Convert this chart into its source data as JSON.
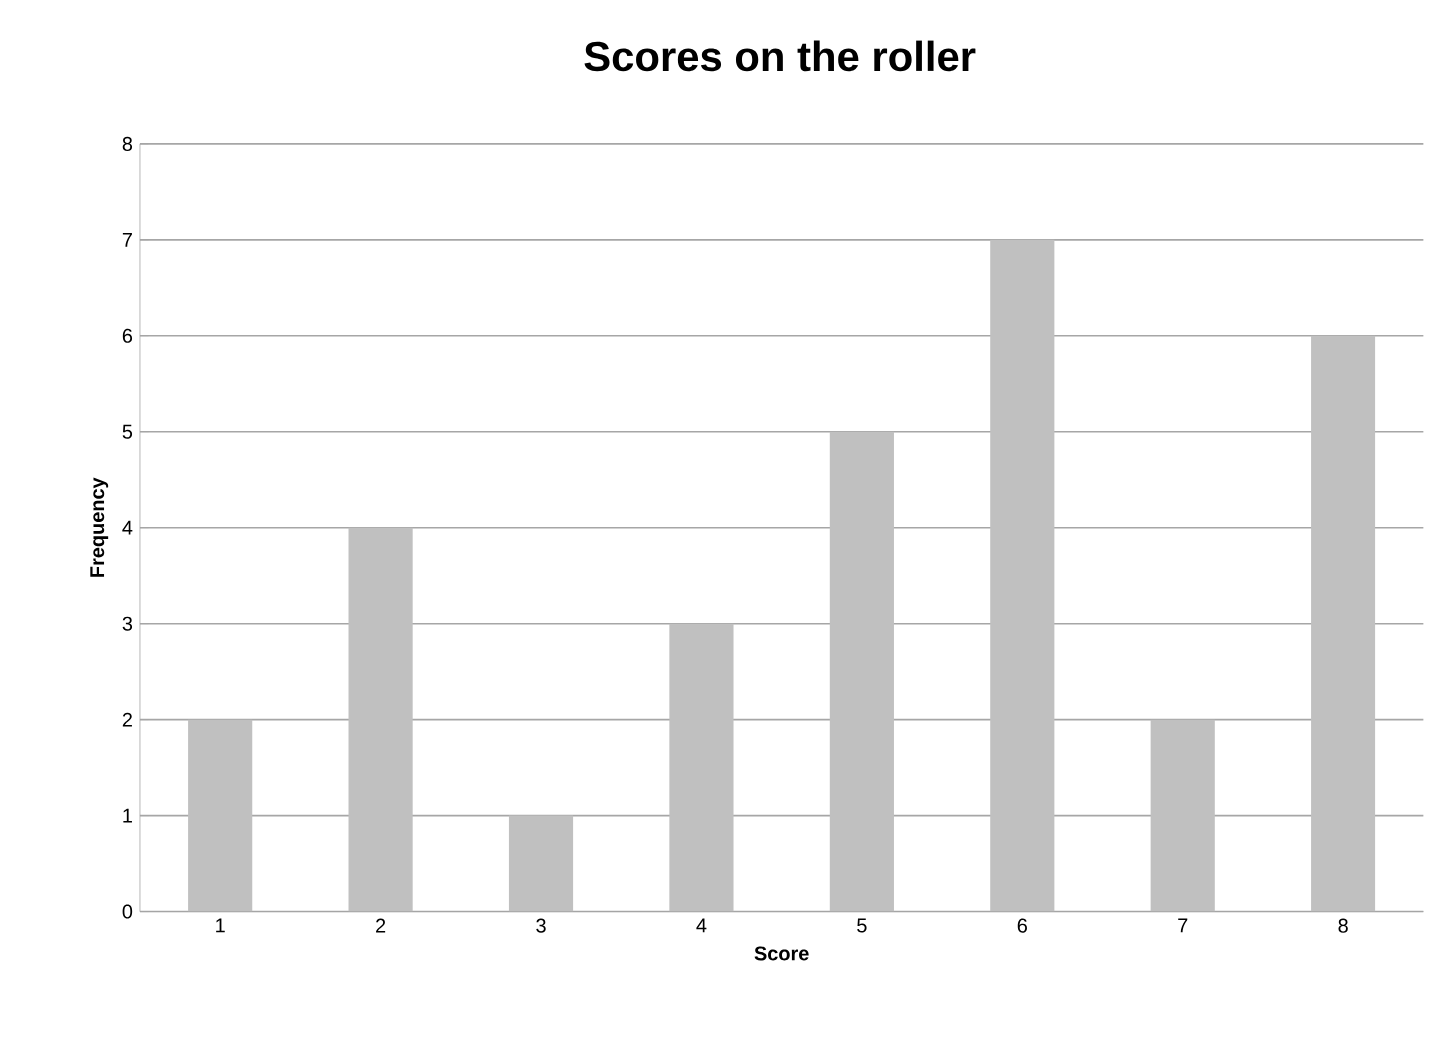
{
  "chart_data": {
    "type": "bar",
    "title": "Scores on the roller",
    "xlabel": "Score",
    "ylabel": "Frequency",
    "categories": [
      "1",
      "2",
      "3",
      "4",
      "5",
      "6",
      "7",
      "8"
    ],
    "values": [
      2,
      4,
      1,
      3,
      5,
      7,
      2,
      6
    ],
    "color": "#c0c0c0",
    "ylim": [
      0,
      8
    ],
    "yticks": [
      0,
      1,
      2,
      3,
      4,
      5,
      6,
      7,
      8
    ],
    "grid": "y"
  }
}
